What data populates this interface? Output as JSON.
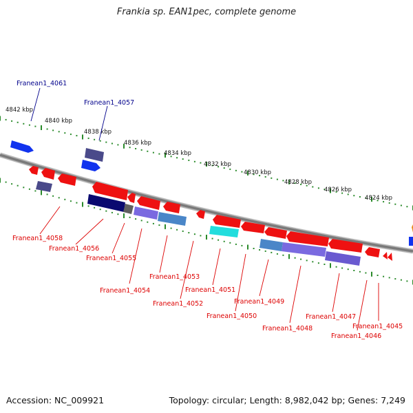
{
  "title": "Frankia sp. EAN1pec, complete genome",
  "footer": {
    "accession": "Accession: NC_009921",
    "info": "Topology: circular; Length: 8,982,042 bp; Genes: 7,249"
  },
  "colors": {
    "backbone": "#8a8a8a",
    "tick": "#2a8a2a",
    "label_top": "#00008b",
    "label_bottom": "#dd0000",
    "gene_red": "#ee1111",
    "gene_blue": "#1133ee",
    "gene_navy": "#0a0a70",
    "gene_slate": "#4a4a8a",
    "gene_purple": "#7a6ae0",
    "gene_cyan": "#22dddd",
    "gene_steel": "#4a86c8"
  },
  "scale_labels": [
    "4842 kbp",
    "4840 kbp",
    "4838 kbp",
    "4836 kbp",
    "4834 kbp",
    "4832 kbp",
    "4830 kbp",
    "4828 kbp",
    "4826 kbp",
    "4824 kbp"
  ],
  "top_genes": [
    "Franean1_4061",
    "Franean1_4057"
  ],
  "bottom_genes": [
    "Franean1_4058",
    "Franean1_4056",
    "Franean1_4055",
    "Franean1_4054",
    "Franean1_4053",
    "Franean1_4052",
    "Franean1_4051",
    "Franean1_4050",
    "Franean1_4049",
    "Franean1_4048",
    "Franean1_4047",
    "Franean1_4046",
    "Franean1_4045"
  ]
}
